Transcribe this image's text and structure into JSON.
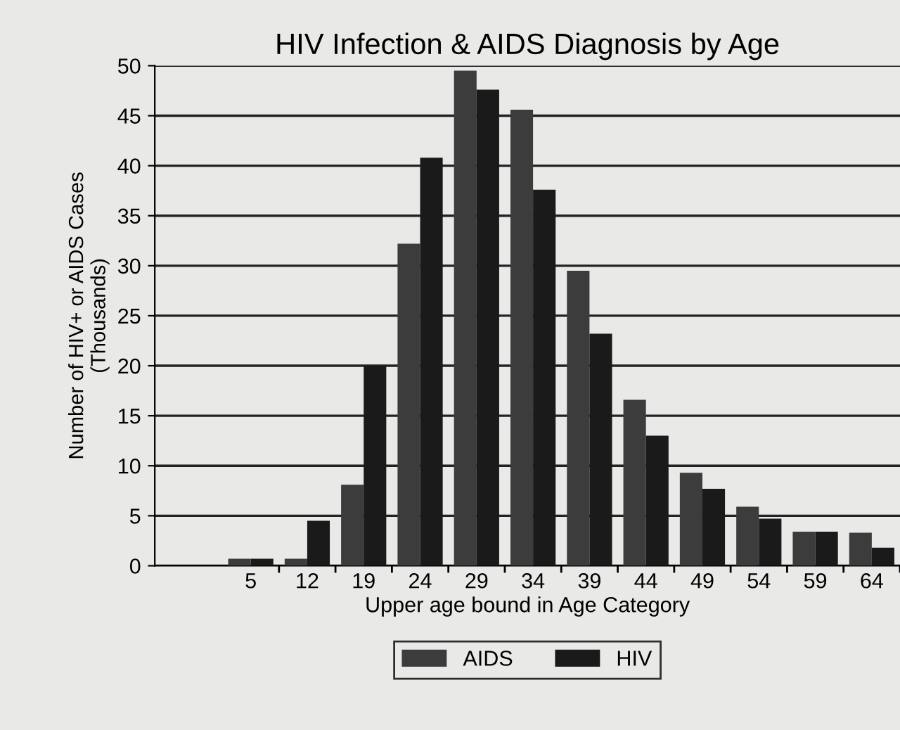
{
  "chart_data": {
    "type": "bar",
    "title": "HIV Infection & AIDS Diagnosis by Age",
    "xlabel": "Upper age bound in Age Category",
    "ylabel": "Number of HIV+ or AIDS Cases\n(Thousands)",
    "categories": [
      "5",
      "12",
      "19",
      "24",
      "29",
      "34",
      "39",
      "44",
      "49",
      "54",
      "59",
      "64"
    ],
    "series": [
      {
        "name": "AIDS",
        "color": "#3c3c3c",
        "values": [
          0.7,
          0.7,
          8.1,
          32.2,
          49.5,
          45.6,
          29.5,
          16.6,
          9.3,
          5.9,
          3.4,
          3.3
        ]
      },
      {
        "name": "HIV",
        "color": "#1a1a1a",
        "values": [
          0.7,
          4.5,
          20,
          40.8,
          47.6,
          37.6,
          23.2,
          13.0,
          7.7,
          4.7,
          3.4,
          1.8
        ]
      }
    ],
    "ylim": [
      0,
      50
    ],
    "yticks": [
      0,
      5,
      10,
      15,
      20,
      25,
      30,
      35,
      40,
      45,
      50
    ],
    "grid": "y",
    "legend": "bottom"
  }
}
